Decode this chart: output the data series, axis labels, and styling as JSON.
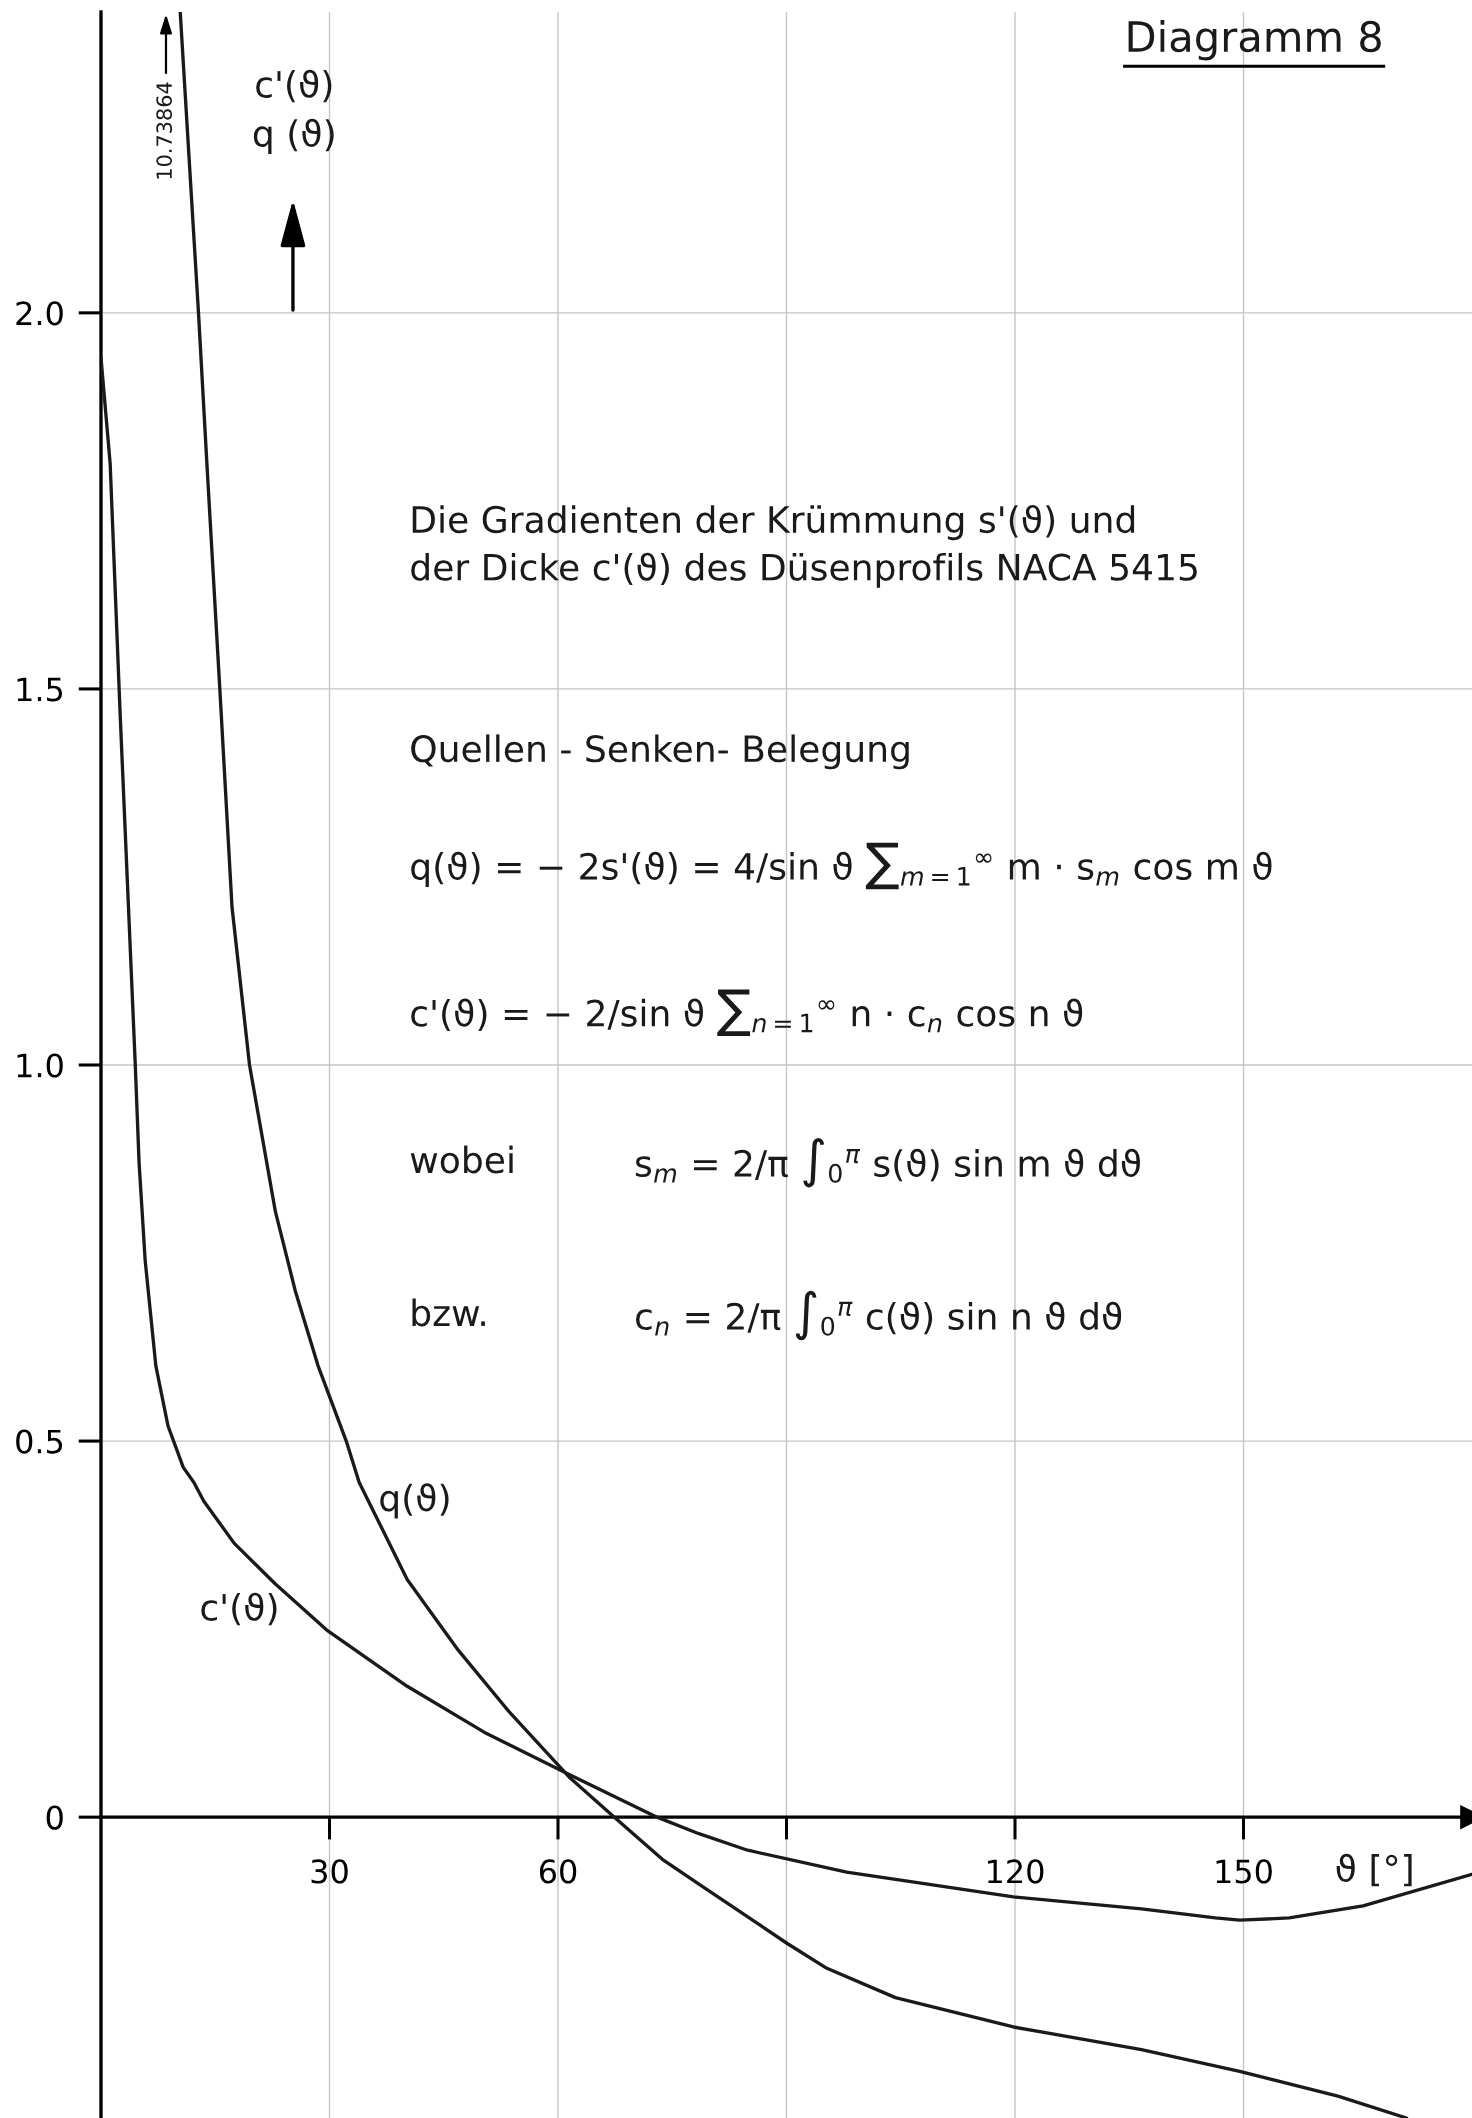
{
  "chart_data": {
    "type": "line",
    "title": "Diagramm 8",
    "subtitle": "Die Gradienten der Krümmung s'(ϑ) und\nder Dicke c'(ϑ) des Düsenprofils NACA 5415",
    "xlabel": "ϑ [°]",
    "ylabel": "c'(ϑ)\nq (ϑ)",
    "annotations": [
      "10.73864",
      "Quellen - Senken- Belegung",
      "q(ϑ) = − 2s'(ϑ) = 4/sin ϑ ∑$_{m=1}$$^{∞}$ m · s$_{m}$ cos m ϑ",
      "c'(ϑ) = − 2/sin ϑ ∑$_{n=1}$$^{∞}$ n · c$_{n}$ cos n ϑ",
      "wobei",
      "s$_{m}$ = 2/π ∫$_{0}$$^{π}$ s(ϑ) sin m ϑ dϑ",
      "bzw.",
      "c$_{n}$ = 2/π ∫$_{0}$$^{π}$ c(ϑ) sin n ϑ dϑ"
    ],
    "series": [
      {
        "name": "q(ϑ)",
        "color": "#1a1a1a",
        "x": [
          10.4,
          12.8,
          13.9,
          15.6,
          17.2,
          19.5,
          22.9,
          25.5,
          28.5,
          32.2,
          33.9,
          40.2,
          46.9,
          53.6,
          61.6,
          67.4,
          73.7,
          78.5,
          90.1,
          95.3,
          104.3,
          119.8,
          136.6,
          149.5,
          162.4,
          171.4
        ],
        "values": [
          2.4,
          2.0,
          1.8,
          1.5,
          1.21,
          1.0,
          0.805,
          0.7,
          0.6,
          0.5,
          0.445,
          0.316,
          0.222,
          0.14,
          0.052,
          0.0,
          -0.056,
          -0.089,
          -0.168,
          -0.201,
          -0.24,
          -0.279,
          -0.309,
          -0.338,
          -0.371,
          -0.4
        ]
      },
      {
        "name": "c'(ϑ)",
        "color": "#1a1a1a",
        "x": [
          0,
          1.2,
          2.5,
          4.5,
          5.0,
          5.8,
          7.2,
          8.8,
          10.8,
          12.2,
          13.5,
          17.5,
          22.9,
          29.6,
          40.2,
          50.3,
          61.6,
          73.0,
          78.5,
          84.9,
          97.9,
          119.8,
          136.6,
          146.3,
          149.5,
          156,
          165.7,
          180
        ],
        "values": [
          1.94,
          1.8,
          1.47,
          1.0,
          0.87,
          0.74,
          0.6,
          0.52,
          0.465,
          0.445,
          0.42,
          0.364,
          0.31,
          0.249,
          0.174,
          0.113,
          0.056,
          0.0,
          -0.022,
          -0.044,
          -0.073,
          -0.106,
          -0.122,
          -0.134,
          -0.137,
          -0.134,
          -0.118,
          -0.076
        ]
      }
    ],
    "xlim": [
      0,
      180
    ],
    "ylim": [
      -0.4,
      2.4
    ],
    "xticks": [
      30,
      60,
      {
        "value": 90,
        "label": null
      },
      120,
      150
    ],
    "yticks": [
      0,
      0.5,
      {
        "value": 1,
        "label": "1.0"
      },
      1.5,
      {
        "value": 2,
        "label": "2.0"
      }
    ],
    "grid": true
  }
}
